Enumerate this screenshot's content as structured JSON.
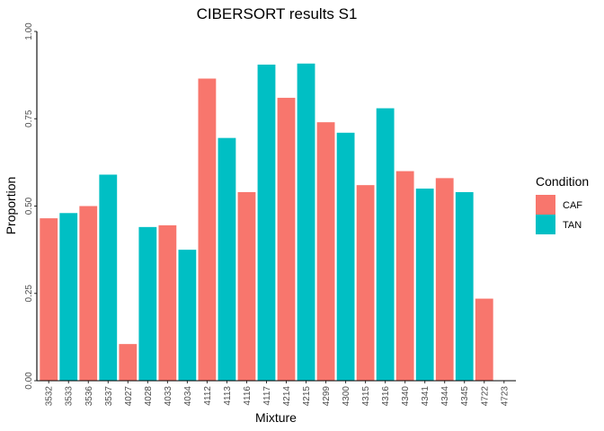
{
  "chart_data": {
    "type": "bar",
    "title": "CIBERSORT results S1",
    "xlabel": "Mixture",
    "ylabel": "Proportion",
    "ylim": [
      0,
      1
    ],
    "y_ticks": [
      "0.00",
      "0.25",
      "0.50",
      "0.75",
      "1.00"
    ],
    "y_tick_values": [
      0,
      0.25,
      0.5,
      0.75,
      1.0
    ],
    "grid": false,
    "legend_position": "right",
    "legend_title": "Condition",
    "series": [
      {
        "name": "CAF",
        "color": "#F8766D"
      },
      {
        "name": "TAN",
        "color": "#00BFC4"
      }
    ],
    "bars": [
      {
        "category": "3532",
        "value": 0.465,
        "condition": "CAF"
      },
      {
        "category": "3533",
        "value": 0.48,
        "condition": "TAN"
      },
      {
        "category": "3536",
        "value": 0.5,
        "condition": "CAF"
      },
      {
        "category": "3537",
        "value": 0.59,
        "condition": "TAN"
      },
      {
        "category": "4027",
        "value": 0.105,
        "condition": "CAF"
      },
      {
        "category": "4028",
        "value": 0.44,
        "condition": "TAN"
      },
      {
        "category": "4033",
        "value": 0.445,
        "condition": "CAF"
      },
      {
        "category": "4034",
        "value": 0.375,
        "condition": "TAN"
      },
      {
        "category": "4112",
        "value": 0.865,
        "condition": "CAF"
      },
      {
        "category": "4113",
        "value": 0.695,
        "condition": "TAN"
      },
      {
        "category": "4116",
        "value": 0.54,
        "condition": "CAF"
      },
      {
        "category": "4117",
        "value": 0.905,
        "condition": "TAN"
      },
      {
        "category": "4214",
        "value": 0.81,
        "condition": "CAF"
      },
      {
        "category": "4215",
        "value": 0.908,
        "condition": "TAN"
      },
      {
        "category": "4299",
        "value": 0.74,
        "condition": "CAF"
      },
      {
        "category": "4300",
        "value": 0.71,
        "condition": "TAN"
      },
      {
        "category": "4315",
        "value": 0.56,
        "condition": "CAF"
      },
      {
        "category": "4316",
        "value": 0.78,
        "condition": "TAN"
      },
      {
        "category": "4340",
        "value": 0.6,
        "condition": "CAF"
      },
      {
        "category": "4341",
        "value": 0.55,
        "condition": "TAN"
      },
      {
        "category": "4344",
        "value": 0.58,
        "condition": "CAF"
      },
      {
        "category": "4345",
        "value": 0.54,
        "condition": "TAN"
      },
      {
        "category": "4722",
        "value": 0.235,
        "condition": "CAF"
      },
      {
        "category": "4723",
        "value": 0.0,
        "condition": "TAN"
      }
    ]
  }
}
